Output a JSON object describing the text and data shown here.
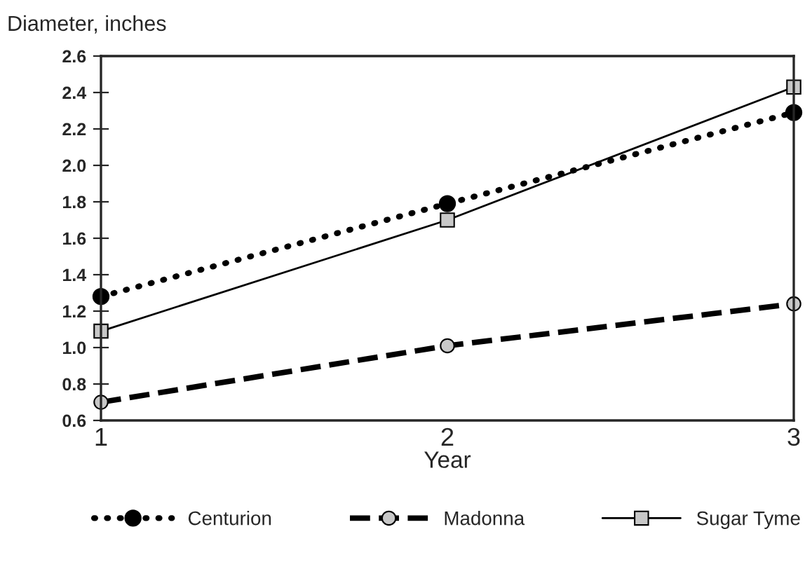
{
  "chart_data": {
    "type": "line",
    "xlabel": "Year",
    "ylabel": "Diameter, inches",
    "x": [
      1,
      2,
      3
    ],
    "xlim": [
      1,
      3
    ],
    "xticks": [
      1,
      2,
      3
    ],
    "ylim": [
      0.6,
      2.6
    ],
    "yticks": [
      0.6,
      0.8,
      {
        "value": 1,
        "label": "1.0"
      },
      1.2,
      1.4,
      1.6,
      1.8,
      {
        "value": 2,
        "label": "2.0"
      },
      2.2,
      2.4,
      2.6
    ],
    "grid": false,
    "legend": "bottom",
    "series": [
      {
        "name": "Centurion",
        "color": "#000000",
        "values": [
          1.28,
          1.79,
          2.29
        ],
        "marker": "circle",
        "line_style": "dotted"
      },
      {
        "name": "Madonna",
        "color": "#000000",
        "values": [
          0.7,
          1.01,
          1.24
        ],
        "marker": "circle",
        "line_style": "dashed"
      },
      {
        "name": "Sugar Tyme",
        "color": "#000000",
        "values": [
          1.09,
          1.7,
          2.43
        ],
        "marker": "square",
        "line_style": "solid"
      }
    ]
  }
}
